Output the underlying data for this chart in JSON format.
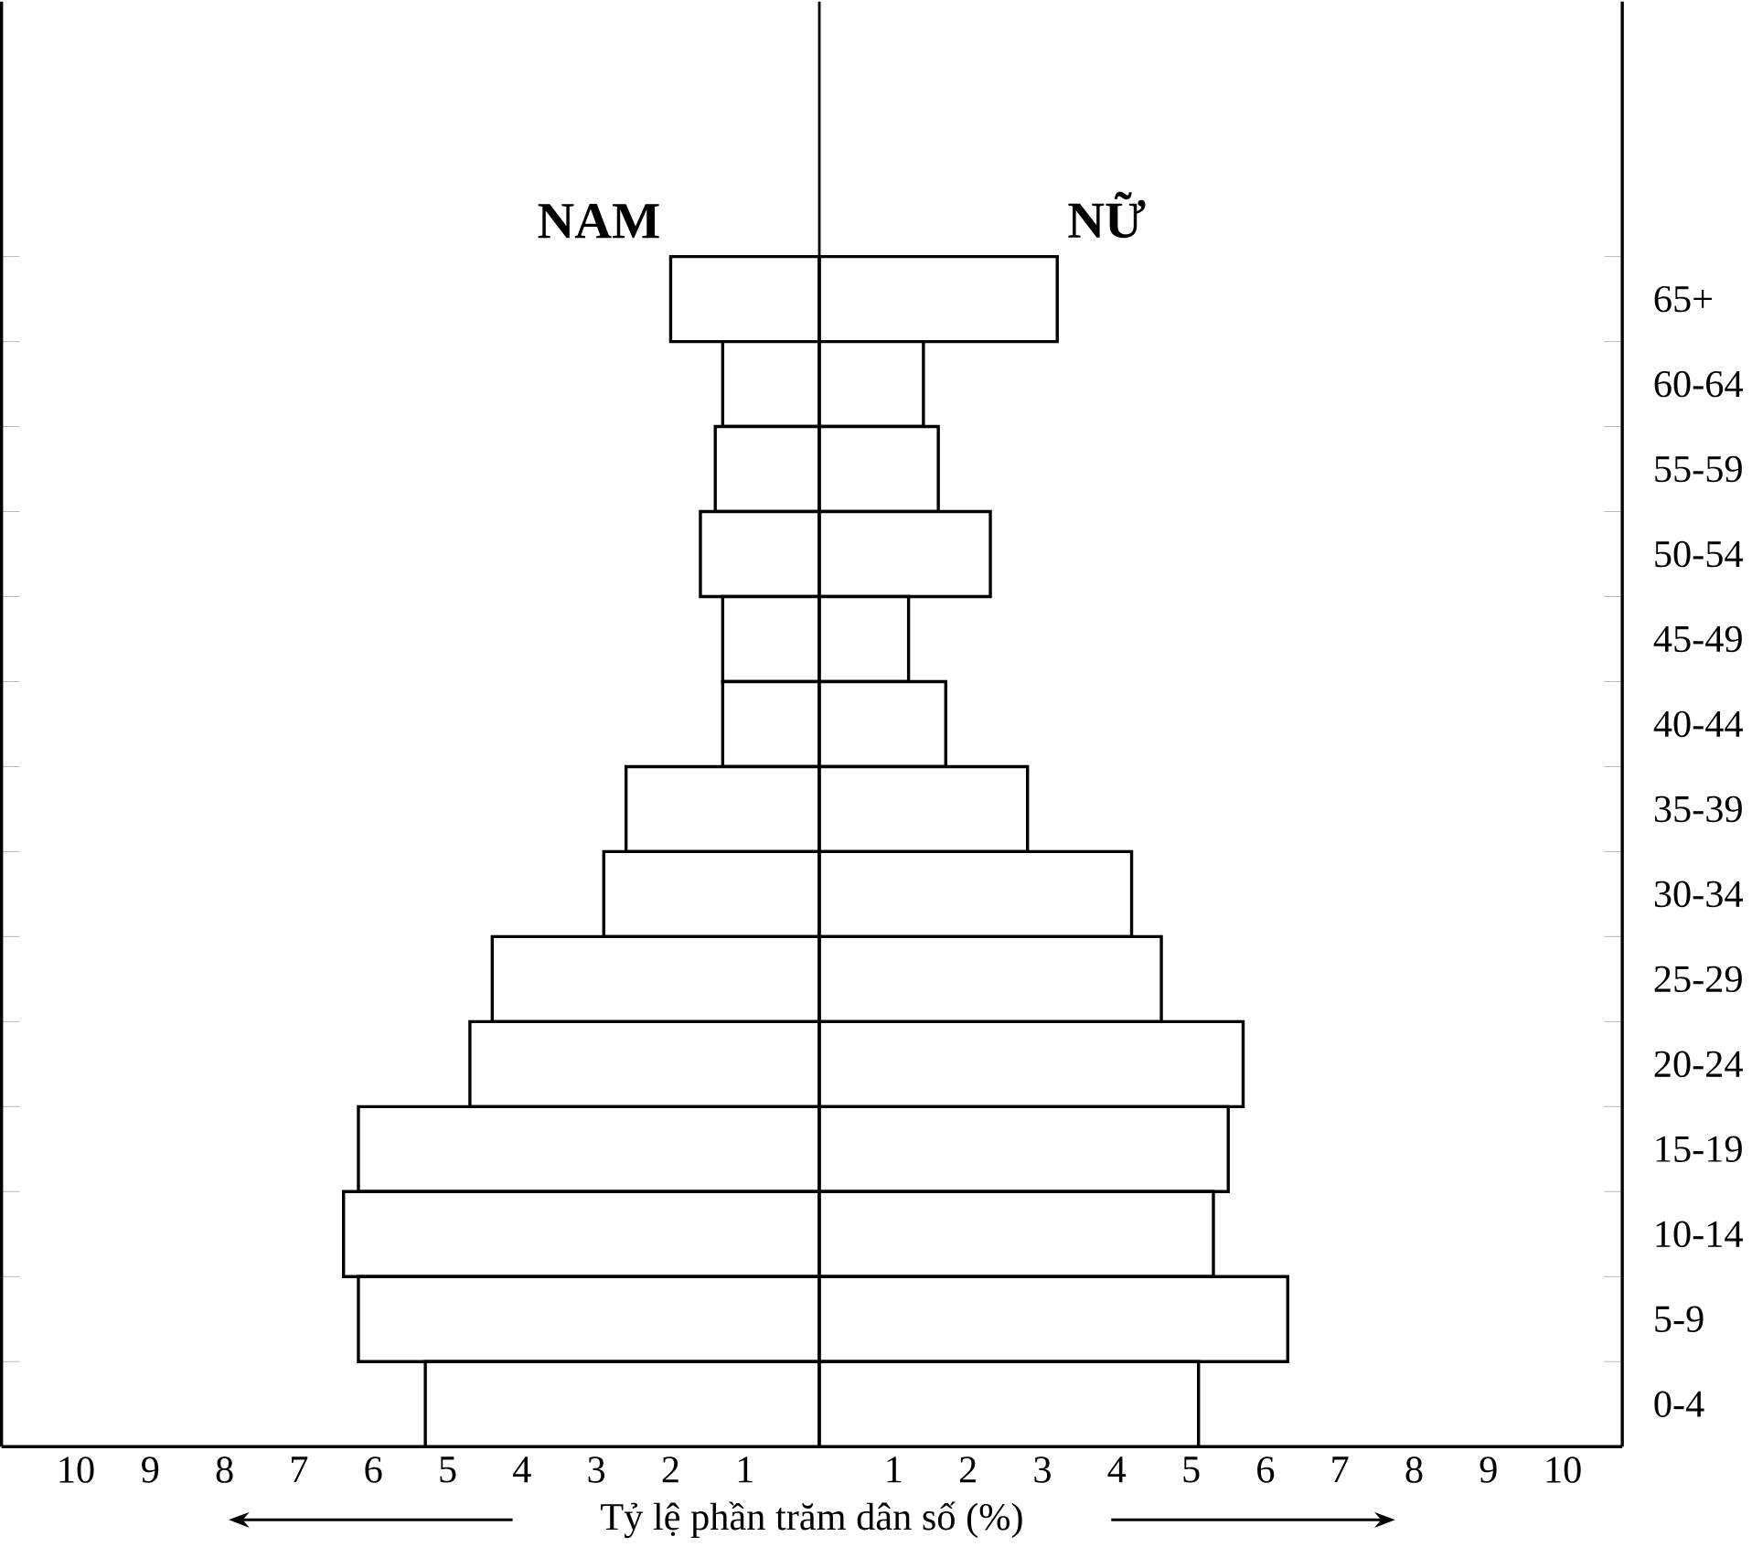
{
  "chart_data": {
    "type": "bar",
    "orientation": "horizontal",
    "xlabel": "Tỷ lệ phần trăm dân số (%)",
    "categories": [
      "65+",
      "60-64",
      "55-59",
      "50-54",
      "45-49",
      "40-44",
      "35-39",
      "30-34",
      "25-29",
      "20-24",
      "15-19",
      "10-14",
      "5-9",
      "0-4"
    ],
    "series": [
      {
        "name": "NAM",
        "color": "#ffffff",
        "values": [
          -2.0,
          -1.3,
          -1.4,
          -1.6,
          -1.3,
          -1.3,
          -2.6,
          -2.9,
          -4.4,
          -4.7,
          -6.2,
          -6.4,
          -6.2,
          -5.3
        ]
      },
      {
        "name": "NỮ",
        "color": "#ffffff",
        "values": [
          3.2,
          1.4,
          1.6,
          2.3,
          1.2,
          1.7,
          2.8,
          4.2,
          4.6,
          5.7,
          5.5,
          5.3,
          6.3,
          5.1
        ]
      }
    ],
    "xlim": [
      -11,
      10.8
    ],
    "xticks": [
      {
        "value": -10,
        "label": "10"
      },
      {
        "value": -9,
        "label": "9"
      },
      {
        "value": -8,
        "label": "8"
      },
      {
        "value": -7,
        "label": "7"
      },
      {
        "value": -6,
        "label": "6"
      },
      {
        "value": -5,
        "label": "5"
      },
      {
        "value": -4,
        "label": "4"
      },
      {
        "value": -3,
        "label": "3"
      },
      {
        "value": -2,
        "label": "2"
      },
      {
        "value": -1,
        "label": "1"
      },
      1,
      2,
      3,
      4,
      5,
      6,
      7,
      8,
      9,
      10
    ],
    "ref_lines": [
      {
        "axis": "x",
        "value": 0
      }
    ],
    "stacked": true
  }
}
